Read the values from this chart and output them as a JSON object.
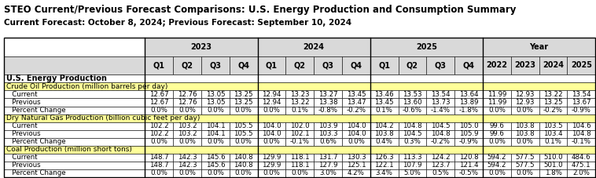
{
  "title": "STEO Current/Previous Forecast Comparisons: U.S. Energy Production and Consumption Summary",
  "subtitle": "Current Forecast: October 8, 2024; Previous Forecast: September 10, 2024",
  "title_fontsize": 8.5,
  "subtitle_fontsize": 7.5,
  "quarter_cols": [
    "Q1",
    "Q2",
    "Q3",
    "Q4",
    "Q1",
    "Q2",
    "Q3",
    "Q4",
    "Q1",
    "Q2",
    "Q3",
    "Q4",
    "2022",
    "2023",
    "2024",
    "2025"
  ],
  "year_groups": [
    [
      "2023",
      1,
      5
    ],
    [
      "2024",
      5,
      9
    ],
    [
      "2025",
      9,
      13
    ],
    [
      "Year",
      13,
      17
    ]
  ],
  "section_header_bg": "#FFFF99",
  "col_header_bg": "#D9D9D9",
  "rows": [
    {
      "label": "U.S. Energy Production",
      "type": "section_bold",
      "data": null,
      "bg": "#FFFFFF"
    },
    {
      "label": "Crude Oil Production (million barrels per day)",
      "type": "category",
      "data": null,
      "bg": "#FFFF99"
    },
    {
      "label": "Current",
      "type": "data",
      "data": [
        "12.67",
        "12.76",
        "13.05",
        "13.25",
        "12.94",
        "13.23",
        "13.27",
        "13.45",
        "13.46",
        "13.53",
        "13.54",
        "13.64",
        "11.99",
        "12.93",
        "13.22",
        "13.54"
      ],
      "bg": "#FFFFFF"
    },
    {
      "label": "Previous",
      "type": "data",
      "data": [
        "12.67",
        "12.76",
        "13.05",
        "13.25",
        "12.94",
        "13.22",
        "13.38",
        "13.47",
        "13.45",
        "13.60",
        "13.73",
        "13.89",
        "11.99",
        "12.93",
        "13.25",
        "13.67"
      ],
      "bg": "#FFFFFF"
    },
    {
      "label": "Percent Change",
      "type": "data",
      "data": [
        "0.0%",
        "0.0%",
        "0.0%",
        "0.0%",
        "0.0%",
        "0.1%",
        "-0.8%",
        "-0.2%",
        "0.1%",
        "-0.6%",
        "-1.4%",
        "-1.8%",
        "0.0%",
        "0.0%",
        "-0.2%",
        "-0.9%"
      ],
      "bg": "#FFFFFF"
    },
    {
      "label": "Dry Natural Gas Production (billion cubic feet per day)",
      "type": "category",
      "data": null,
      "bg": "#FFFF99"
    },
    {
      "label": "Current",
      "type": "data",
      "data": [
        "102.2",
        "103.2",
        "104.1",
        "105.5",
        "104.0",
        "102.0",
        "103.9",
        "104.0",
        "104.2",
        "104.8",
        "104.5",
        "105.0",
        "99.6",
        "103.8",
        "103.5",
        "104.6"
      ],
      "bg": "#FFFFFF"
    },
    {
      "label": "Previous",
      "type": "data",
      "data": [
        "102.2",
        "103.2",
        "104.1",
        "105.5",
        "104.0",
        "102.1",
        "103.3",
        "104.0",
        "103.8",
        "104.5",
        "104.8",
        "105.9",
        "99.6",
        "103.8",
        "103.4",
        "104.8"
      ],
      "bg": "#FFFFFF"
    },
    {
      "label": "Percent Change",
      "type": "data",
      "data": [
        "0.0%",
        "0.0%",
        "0.0%",
        "0.0%",
        "0.0%",
        "-0.1%",
        "0.6%",
        "0.0%",
        "0.4%",
        "0.3%",
        "-0.2%",
        "-0.9%",
        "0.0%",
        "0.0%",
        "0.1%",
        "-0.1%"
      ],
      "bg": "#FFFFFF"
    },
    {
      "label": "Coal Production (million short tons)",
      "type": "category",
      "data": null,
      "bg": "#FFFF99"
    },
    {
      "label": "Current",
      "type": "data",
      "data": [
        "148.7",
        "142.3",
        "145.6",
        "140.8",
        "129.9",
        "118.1",
        "131.7",
        "130.3",
        "126.3",
        "113.3",
        "124.2",
        "120.8",
        "594.2",
        "577.5",
        "510.0",
        "484.6"
      ],
      "bg": "#FFFFFF"
    },
    {
      "label": "Previous",
      "type": "data",
      "data": [
        "148.7",
        "142.3",
        "145.6",
        "140.8",
        "129.9",
        "118.1",
        "127.9",
        "125.1",
        "122.1",
        "107.9",
        "123.7",
        "121.4",
        "594.2",
        "577.5",
        "501.0",
        "475.1"
      ],
      "bg": "#FFFFFF"
    },
    {
      "label": "Percent Change",
      "type": "data",
      "data": [
        "0.0%",
        "0.0%",
        "0.0%",
        "0.0%",
        "0.0%",
        "0.0%",
        "3.0%",
        "4.2%",
        "3.4%",
        "5.0%",
        "0.5%",
        "-0.5%",
        "0.0%",
        "0.0%",
        "1.8%",
        "2.0%"
      ],
      "bg": "#FFFFFF"
    }
  ],
  "col_widths_ratios": [
    2.6,
    0.52,
    0.52,
    0.52,
    0.52,
    0.52,
    0.52,
    0.52,
    0.52,
    0.52,
    0.52,
    0.52,
    0.52,
    0.52,
    0.52,
    0.52,
    0.52
  ],
  "border_color": "#000000",
  "data_fontsize": 6.2,
  "header_fontsize": 7.0,
  "category_fontsize": 6.5,
  "section_fontsize": 7.0
}
